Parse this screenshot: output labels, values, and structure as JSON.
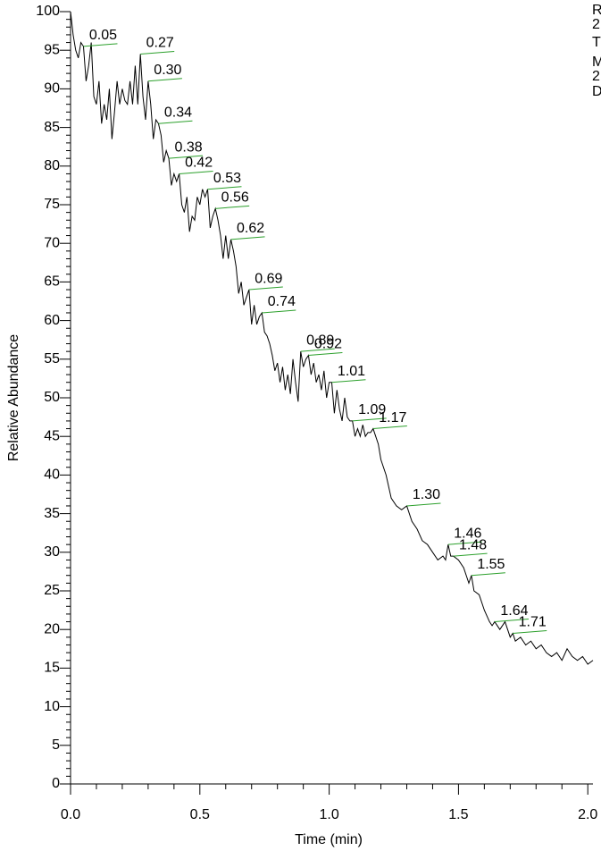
{
  "chart_data": {
    "type": "line",
    "xlabel": "Time (min)",
    "ylabel": "Relative Abundance",
    "header_text": [
      "R",
      "2",
      "T",
      "M",
      "2",
      "D"
    ],
    "color": "#000000",
    "peak_color": "#2ca02c",
    "xlim": [
      0,
      2.02
    ],
    "ylim": [
      0,
      100
    ],
    "xticks": [
      {
        "value": 0,
        "label": "0.0"
      },
      {
        "value": 0.5,
        "label": "0.5"
      },
      {
        "value": 1,
        "label": "1.0"
      },
      {
        "value": 1.5,
        "label": "1.5"
      },
      {
        "value": 2,
        "label": "2.0"
      }
    ],
    "xminorticks": [
      0.1,
      0.2,
      0.3,
      0.4,
      0.6,
      0.7,
      0.8,
      0.9,
      1.1,
      1.2,
      1.3,
      1.4,
      1.6,
      1.7,
      1.8,
      1.9
    ],
    "yticks": [
      0,
      5,
      10,
      15,
      20,
      25,
      30,
      35,
      40,
      45,
      50,
      55,
      60,
      65,
      70,
      75,
      80,
      85,
      90,
      95,
      100
    ],
    "yminorticks": [
      1,
      2,
      3,
      4,
      6,
      7,
      8,
      9,
      11,
      12,
      13,
      14,
      16,
      17,
      18,
      19,
      21,
      22,
      23,
      24,
      26,
      27,
      28,
      29,
      31,
      32,
      33,
      34,
      36,
      37,
      38,
      39,
      41,
      42,
      43,
      44,
      46,
      47,
      48,
      49,
      51,
      52,
      53,
      54,
      56,
      57,
      58,
      59,
      61,
      62,
      63,
      64,
      66,
      67,
      68,
      69,
      71,
      72,
      73,
      74,
      76,
      77,
      78,
      79,
      81,
      82,
      83,
      84,
      86,
      87,
      88,
      89,
      91,
      92,
      93,
      94,
      96,
      97,
      98,
      99
    ],
    "x": [
      0.0,
      0.01,
      0.02,
      0.03,
      0.04,
      0.05,
      0.06,
      0.07,
      0.08,
      0.09,
      0.1,
      0.11,
      0.12,
      0.13,
      0.14,
      0.15,
      0.16,
      0.17,
      0.18,
      0.19,
      0.2,
      0.21,
      0.22,
      0.23,
      0.24,
      0.25,
      0.26,
      0.27,
      0.28,
      0.29,
      0.3,
      0.31,
      0.32,
      0.33,
      0.34,
      0.35,
      0.36,
      0.37,
      0.38,
      0.39,
      0.4,
      0.41,
      0.42,
      0.43,
      0.44,
      0.45,
      0.46,
      0.47,
      0.48,
      0.49,
      0.5,
      0.51,
      0.52,
      0.53,
      0.54,
      0.55,
      0.56,
      0.57,
      0.58,
      0.59,
      0.6,
      0.61,
      0.62,
      0.63,
      0.64,
      0.65,
      0.66,
      0.67,
      0.68,
      0.69,
      0.7,
      0.71,
      0.72,
      0.73,
      0.74,
      0.75,
      0.76,
      0.77,
      0.78,
      0.79,
      0.8,
      0.81,
      0.82,
      0.83,
      0.84,
      0.85,
      0.86,
      0.87,
      0.88,
      0.89,
      0.9,
      0.91,
      0.92,
      0.93,
      0.94,
      0.95,
      0.96,
      0.97,
      0.98,
      0.99,
      1.0,
      1.01,
      1.02,
      1.03,
      1.04,
      1.05,
      1.06,
      1.07,
      1.08,
      1.09,
      1.1,
      1.11,
      1.12,
      1.13,
      1.14,
      1.15,
      1.16,
      1.17,
      1.18,
      1.19,
      1.2,
      1.22,
      1.24,
      1.26,
      1.28,
      1.3,
      1.32,
      1.34,
      1.36,
      1.38,
      1.4,
      1.42,
      1.44,
      1.45,
      1.46,
      1.47,
      1.48,
      1.5,
      1.52,
      1.54,
      1.55,
      1.56,
      1.58,
      1.6,
      1.62,
      1.63,
      1.64,
      1.66,
      1.68,
      1.7,
      1.71,
      1.72,
      1.74,
      1.76,
      1.78,
      1.8,
      1.82,
      1.84,
      1.86,
      1.88,
      1.9,
      1.92,
      1.94,
      1.96,
      1.98,
      2.0,
      2.02
    ],
    "y": [
      100,
      97,
      95,
      94,
      96,
      95.5,
      91,
      93,
      96,
      89,
      88,
      91,
      85.5,
      88,
      86,
      90,
      83.5,
      87,
      91,
      88,
      90,
      88.5,
      88,
      91,
      88,
      93,
      88,
      94.5,
      89,
      86,
      91,
      88,
      83.5,
      86,
      85.5,
      84,
      80.5,
      82,
      81,
      77.5,
      79,
      78,
      79,
      75,
      74,
      76,
      71.5,
      73.5,
      73,
      76,
      75,
      77,
      76,
      77,
      72,
      73.5,
      74.5,
      73,
      71,
      68,
      71,
      68,
      70.5,
      69,
      67,
      63.5,
      65,
      62,
      63,
      64,
      59.5,
      62,
      59.5,
      60.5,
      61,
      58.5,
      58,
      57,
      55.5,
      53.5,
      54.5,
      52,
      54,
      51,
      53,
      50.5,
      55,
      52,
      49.5,
      56,
      54,
      55,
      55.5,
      53,
      54.5,
      52,
      53,
      51,
      53.5,
      50,
      52,
      52,
      48,
      51,
      48.5,
      47,
      50,
      47.5,
      47,
      47,
      45,
      46,
      45,
      46.5,
      45,
      45.5,
      45.5,
      46,
      45,
      44,
      42,
      40,
      37,
      36,
      35.5,
      36,
      34,
      33,
      31.5,
      31,
      30,
      29,
      29.5,
      29,
      31,
      29.5,
      29.5,
      29,
      28,
      26,
      27,
      25,
      24.5,
      22.5,
      21,
      20.5,
      21,
      20,
      21,
      19,
      19.5,
      18.5,
      19,
      18,
      18.5,
      17.5,
      18,
      17,
      16.5,
      17,
      16,
      17.5,
      16.5,
      16,
      16.5,
      15.5,
      16
    ],
    "peaks": [
      {
        "x": 0.05,
        "label": "0.05",
        "y": 95.5
      },
      {
        "x": 0.27,
        "label": "0.27",
        "y": 94.5
      },
      {
        "x": 0.3,
        "label": "0.30",
        "y": 91
      },
      {
        "x": 0.34,
        "label": "0.34",
        "y": 85.5
      },
      {
        "x": 0.38,
        "label": "0.38",
        "y": 81
      },
      {
        "x": 0.42,
        "label": "0.42",
        "y": 79
      },
      {
        "x": 0.53,
        "label": "0.53",
        "y": 77
      },
      {
        "x": 0.56,
        "label": "0.56",
        "y": 74.5
      },
      {
        "x": 0.62,
        "label": "0.62",
        "y": 70.5
      },
      {
        "x": 0.69,
        "label": "0.69",
        "y": 64
      },
      {
        "x": 0.74,
        "label": "0.74",
        "y": 61
      },
      {
        "x": 0.89,
        "label": "0.89",
        "y": 56
      },
      {
        "x": 0.92,
        "label": "0.92",
        "y": 55.5
      },
      {
        "x": 1.01,
        "label": "1.01",
        "y": 52
      },
      {
        "x": 1.09,
        "label": "1.09",
        "y": 47
      },
      {
        "x": 1.17,
        "label": "1.17",
        "y": 46
      },
      {
        "x": 1.3,
        "label": "1.30",
        "y": 36
      },
      {
        "x": 1.46,
        "label": "1.46",
        "y": 31
      },
      {
        "x": 1.48,
        "label": "1.48",
        "y": 29.5
      },
      {
        "x": 1.55,
        "label": "1.55",
        "y": 27
      },
      {
        "x": 1.64,
        "label": "1.64",
        "y": 21
      },
      {
        "x": 1.71,
        "label": "1.71",
        "y": 19.5
      }
    ]
  }
}
